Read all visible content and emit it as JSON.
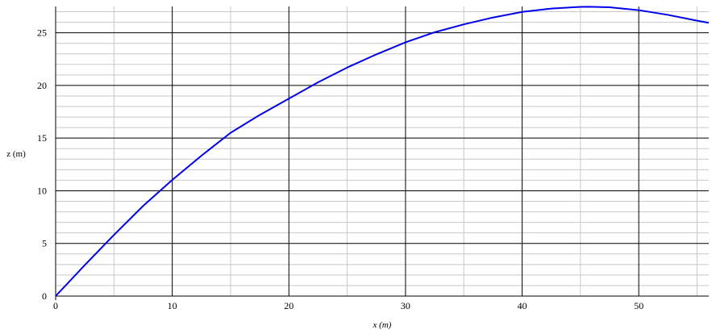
{
  "chart_data": {
    "type": "line",
    "title": "",
    "xlabel": "x (m)",
    "ylabel": "z (m)",
    "xlim": [
      0,
      56
    ],
    "ylim": [
      0,
      27.5
    ],
    "x_major_ticks": [
      0,
      10,
      20,
      30,
      40,
      50
    ],
    "y_major_ticks": [
      0,
      5,
      10,
      15,
      20,
      25
    ],
    "x_minor_step": 5,
    "y_minor_step": 1,
    "grid": true,
    "legend": "none",
    "series": [
      {
        "color": "#0000ee",
        "x": [
          0,
          2.5,
          5,
          7.5,
          10,
          12.5,
          15,
          17.5,
          20,
          22.5,
          25,
          27.5,
          30,
          32.5,
          35,
          37.5,
          40,
          42.5,
          45,
          45.7,
          47.5,
          50,
          52.5,
          55,
          56
        ],
        "y": [
          0,
          2.94,
          5.81,
          8.56,
          11.03,
          13.33,
          15.5,
          17.2,
          18.75,
          20.3,
          21.7,
          22.95,
          24.1,
          25.05,
          25.8,
          26.45,
          26.98,
          27.3,
          27.46,
          27.47,
          27.42,
          27.15,
          26.7,
          26.15,
          25.95
        ]
      }
    ]
  }
}
